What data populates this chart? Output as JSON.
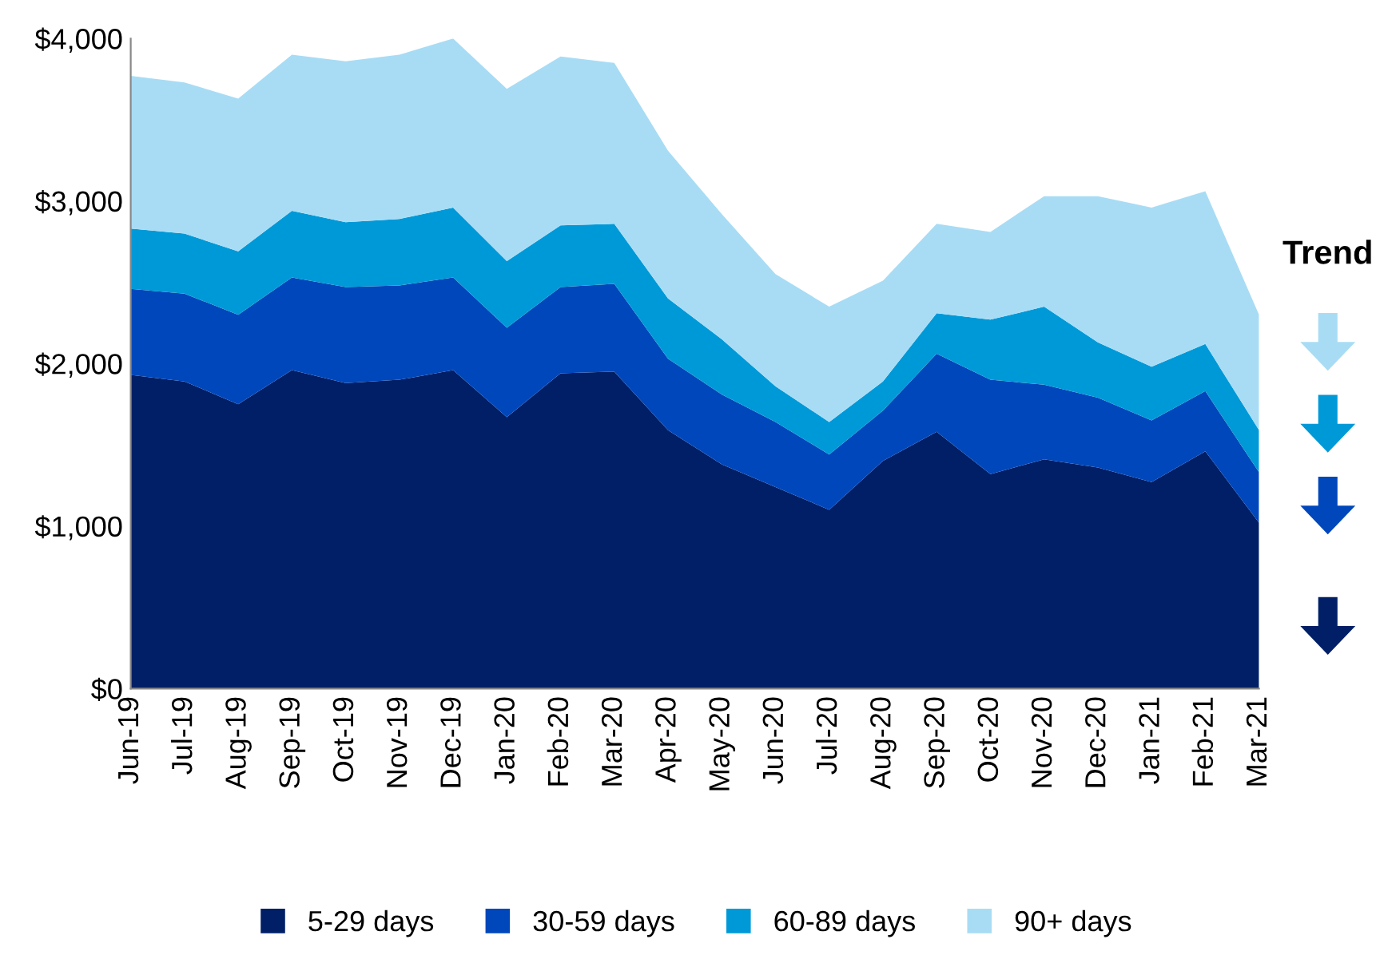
{
  "chart_data": {
    "type": "area",
    "stacked": true,
    "categories": [
      "Jun-19",
      "Jul-19",
      "Aug-19",
      "Sep-19",
      "Oct-19",
      "Nov-19",
      "Dec-19",
      "Jan-20",
      "Feb-20",
      "Mar-20",
      "Apr-20",
      "May-20",
      "Jun-20",
      "Jul-20",
      "Aug-20",
      "Sep-20",
      "Oct-20",
      "Nov-20",
      "Dec-20",
      "Jan-21",
      "Feb-21",
      "Mar-21"
    ],
    "series": [
      {
        "name": "5-29 days",
        "color": "#001f66",
        "values": [
          1930,
          1890,
          1750,
          1960,
          1880,
          1900,
          1960,
          1670,
          1940,
          1950,
          1590,
          1380,
          1240,
          1100,
          1400,
          1580,
          1320,
          1410,
          1360,
          1270,
          1460,
          1020
        ]
      },
      {
        "name": "30-59 days",
        "color": "#0047bb",
        "values": [
          530,
          540,
          550,
          570,
          590,
          580,
          570,
          550,
          530,
          540,
          440,
          430,
          400,
          340,
          310,
          480,
          580,
          460,
          430,
          380,
          370,
          310
        ]
      },
      {
        "name": "60-89 days",
        "color": "#0099d8",
        "values": [
          370,
          370,
          390,
          410,
          400,
          410,
          430,
          410,
          380,
          370,
          370,
          340,
          220,
          200,
          180,
          250,
          370,
          480,
          340,
          330,
          290,
          260
        ]
      },
      {
        "name": "90+ days",
        "color": "#a8dcf5",
        "values": [
          940,
          930,
          940,
          960,
          990,
          1010,
          1040,
          1060,
          1040,
          990,
          910,
          770,
          690,
          710,
          620,
          550,
          540,
          680,
          900,
          980,
          940,
          710
        ]
      }
    ],
    "ylim": [
      0,
      4000
    ],
    "yticks": [
      {
        "value": 0,
        "label": "$0"
      },
      {
        "value": 1000,
        "label": "$1,000"
      },
      {
        "value": 2000,
        "label": "$2,000"
      },
      {
        "value": 3000,
        "label": "$3,000"
      },
      {
        "value": 4000,
        "label": "$4,000"
      }
    ],
    "grid": false,
    "legend": "bottom",
    "annotations": [
      "Trend"
    ]
  }
}
